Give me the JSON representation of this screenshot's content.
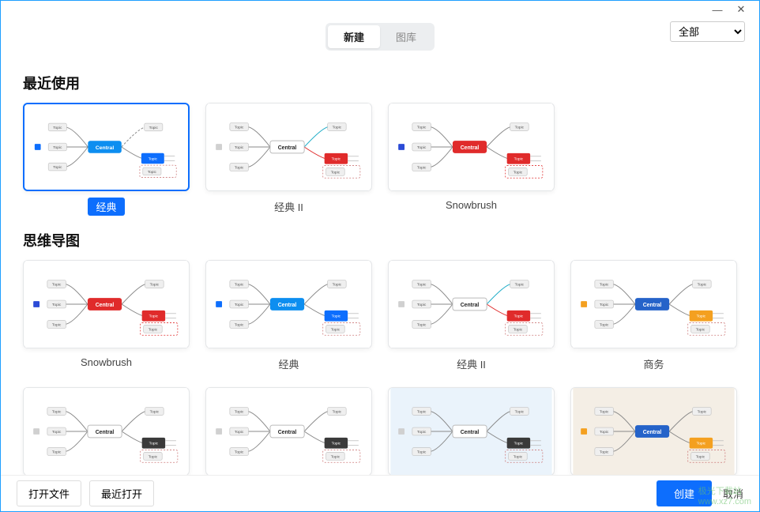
{
  "tabs": {
    "new": "新建",
    "gallery": "图库"
  },
  "category": {
    "selected": "全部",
    "options": [
      "全部"
    ]
  },
  "sections": {
    "recent": {
      "title": "最近使用"
    },
    "mindmap": {
      "title": "思维导图"
    }
  },
  "colors": {
    "primary": "#0d6efd",
    "red": "#e02b2b",
    "teal": "#1eacc7",
    "orange": "#f4a020",
    "dark": "#2c2c2c",
    "grey_box": "#e8e8e8",
    "grey_border": "#bfbfbf",
    "light_blue_bg": "#eaf3fb",
    "beige_bg": "#f4eee5"
  },
  "mm": {
    "central": "Central",
    "topic": "Topic"
  },
  "templates": {
    "recent": [
      {
        "id": "classic",
        "label": "经典",
        "central_color": "#0d8ef0",
        "selected": true,
        "bg": "#ffffff"
      },
      {
        "id": "classic2",
        "label": "经典 II",
        "central_color": "#ffffff",
        "selected": false,
        "bg": "#ffffff"
      },
      {
        "id": "snowbrush",
        "label": "Snowbrush",
        "central_color": "#e02b2b",
        "selected": false,
        "bg": "#ffffff"
      }
    ],
    "mindmap": [
      {
        "id": "snowbrush2",
        "label": "Snowbrush",
        "central_color": "#e02b2b",
        "bg": "#ffffff"
      },
      {
        "id": "classic_b",
        "label": "经典",
        "central_color": "#0d8ef0",
        "bg": "#ffffff"
      },
      {
        "id": "classic2_b",
        "label": "经典 II",
        "central_color": "#ffffff",
        "bg": "#ffffff"
      },
      {
        "id": "business",
        "label": "商务",
        "central_color": "#2563c9",
        "bg": "#ffffff"
      },
      {
        "id": "row2a",
        "label": "",
        "central_color": "#ffffff",
        "bg": "#ffffff"
      },
      {
        "id": "row2b",
        "label": "",
        "central_color": "#ffffff",
        "bg": "#ffffff"
      },
      {
        "id": "row2c",
        "label": "",
        "central_color": "#ffffff",
        "bg": "#eaf3fb"
      },
      {
        "id": "row2d",
        "label": "",
        "central_color": "#2563c9",
        "bg": "#f4eee5"
      }
    ]
  },
  "footer": {
    "open_file": "打开文件",
    "recent_open": "最近打开",
    "create": "创建",
    "cancel": "取消"
  },
  "watermark": {
    "line1": "极光下载站",
    "line2": "www.xz7.com"
  },
  "style": {
    "thumb_w": 208,
    "thumb_h": 112,
    "topic_box": {
      "w": 24,
      "h": 10,
      "rx": 2,
      "fill": "#efefef",
      "stroke": "#c4c4c4",
      "font_size": 5
    },
    "central_box": {
      "w": 44,
      "h": 16,
      "rx": 3,
      "font_size": 7
    }
  }
}
